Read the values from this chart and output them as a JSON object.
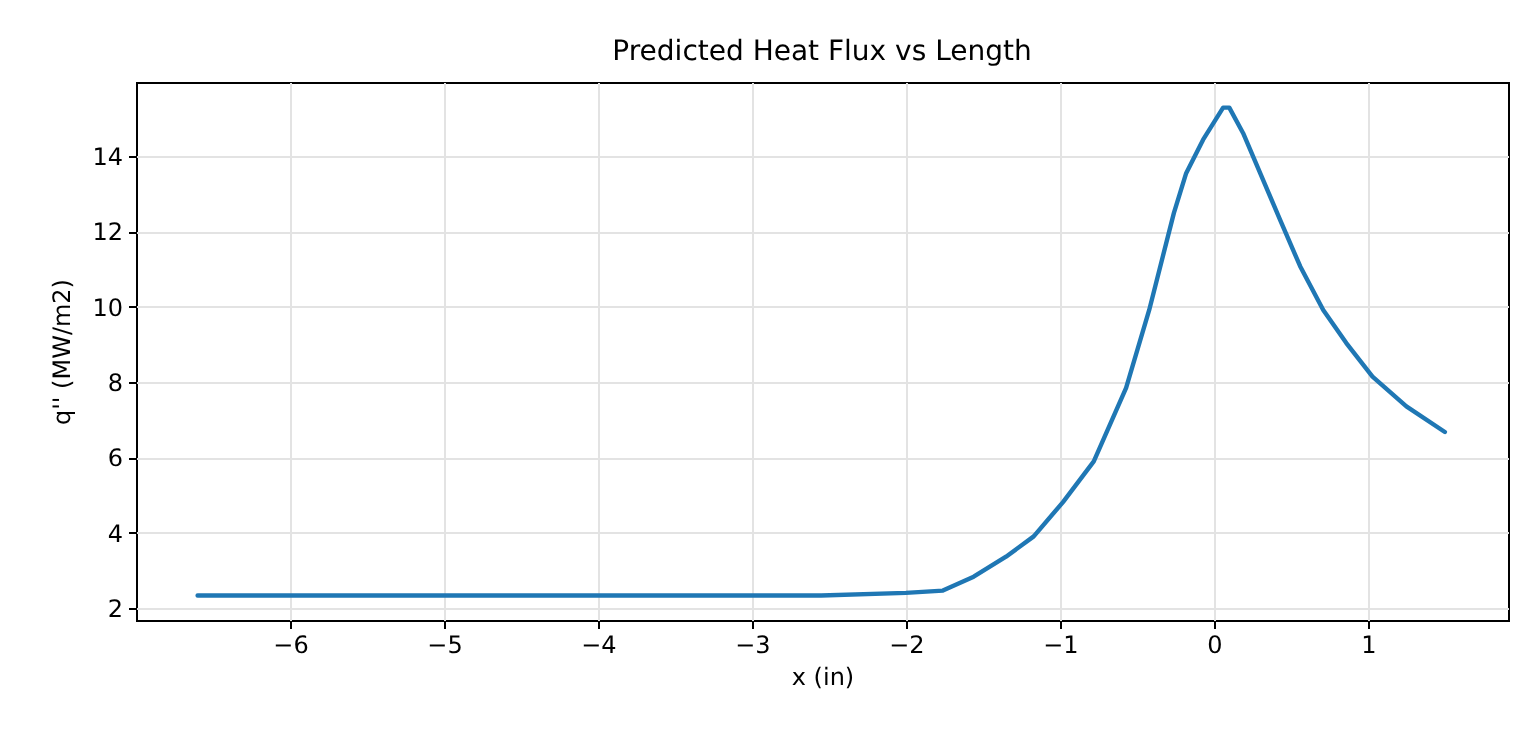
{
  "chart_data": {
    "type": "line",
    "title": "Predicted Heat Flux vs Length",
    "xlabel": "x (in)",
    "ylabel": "q'' (MW/m2)",
    "x": [
      -6.6,
      -5.5,
      -4.5,
      -3.5,
      -2.55,
      -2.0,
      -1.76,
      -1.56,
      -1.35,
      -1.17,
      -0.98,
      -0.78,
      -0.57,
      -0.42,
      -0.26,
      -0.18,
      -0.07,
      0.06,
      0.1,
      0.19,
      0.43,
      0.56,
      0.71,
      0.86,
      1.03,
      1.25,
      1.5
    ],
    "series": [
      {
        "color": "#1f77b4",
        "values": [
          2.33,
          2.33,
          2.33,
          2.33,
          2.33,
          2.4,
          2.46,
          2.83,
          3.36,
          3.9,
          4.81,
          5.89,
          7.84,
          9.91,
          12.48,
          13.54,
          14.43,
          15.28,
          15.28,
          14.6,
          12.3,
          11.07,
          9.91,
          9.03,
          8.14,
          7.35,
          6.67
        ]
      }
    ],
    "xlim": [
      -7.0,
      1.91
    ],
    "ylim": [
      1.68,
      15.96
    ],
    "xticks": [
      -6,
      -5,
      -4,
      -3,
      -2,
      -1,
      0,
      1
    ],
    "yticks": [
      2,
      4,
      6,
      8,
      10,
      12,
      14
    ],
    "grid": true,
    "marker": "none",
    "line_style": "solid"
  }
}
